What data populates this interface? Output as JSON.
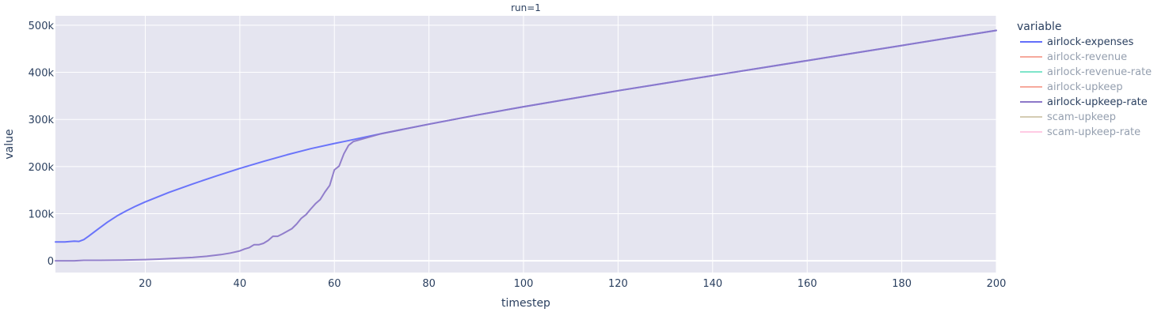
{
  "chart_data": {
    "type": "line",
    "facet_title": "run=1",
    "xlabel": "timestep",
    "ylabel": "value",
    "xlim": [
      1,
      200
    ],
    "ylim": [
      -25000,
      520000
    ],
    "x_ticks": [
      20,
      40,
      60,
      80,
      100,
      120,
      140,
      160,
      180,
      200
    ],
    "x_tick_labels": [
      "20",
      "40",
      "60",
      "80",
      "100",
      "120",
      "140",
      "160",
      "180",
      "200"
    ],
    "y_ticks": [
      0,
      100000,
      200000,
      300000,
      400000,
      500000
    ],
    "y_tick_labels": [
      "0",
      "100k",
      "200k",
      "300k",
      "400k",
      "500k"
    ],
    "grid": true,
    "background_color": "#e5e5f0",
    "legend": {
      "title": "variable",
      "position": "right"
    },
    "series": [
      {
        "name": "airlock-expenses",
        "color": "#636efa",
        "visible": true,
        "points": [
          [
            1,
            40000
          ],
          [
            3,
            40000
          ],
          [
            5,
            41500
          ],
          [
            6,
            41000
          ],
          [
            7,
            45000
          ],
          [
            8,
            52000
          ],
          [
            10,
            67000
          ],
          [
            12,
            82000
          ],
          [
            14,
            95000
          ],
          [
            16,
            106000
          ],
          [
            18,
            116000
          ],
          [
            20,
            125000
          ],
          [
            25,
            145000
          ],
          [
            30,
            163000
          ],
          [
            35,
            180000
          ],
          [
            40,
            196000
          ],
          [
            45,
            211000
          ],
          [
            50,
            225000
          ],
          [
            55,
            238000
          ],
          [
            60,
            249000
          ],
          [
            62,
            253000
          ],
          [
            70,
            270000
          ],
          [
            80,
            290000
          ],
          [
            90,
            309000
          ],
          [
            100,
            327000
          ],
          [
            110,
            344000
          ],
          [
            120,
            361000
          ],
          [
            130,
            377000
          ],
          [
            140,
            393000
          ],
          [
            150,
            409000
          ],
          [
            160,
            425000
          ],
          [
            170,
            441000
          ],
          [
            180,
            457000
          ],
          [
            190,
            473000
          ],
          [
            200,
            489000
          ]
        ]
      },
      {
        "name": "airlock-revenue",
        "color": "#ef553b",
        "visible": false,
        "points": []
      },
      {
        "name": "airlock-revenue-rate",
        "color": "#00cc96",
        "visible": false,
        "points": []
      },
      {
        "name": "airlock-upkeep",
        "color": "#ef553b",
        "visible": false,
        "points": []
      },
      {
        "name": "airlock-upkeep-rate",
        "color": "#8c78c8",
        "visible": true,
        "points": [
          [
            1,
            0
          ],
          [
            5,
            0
          ],
          [
            7,
            1000
          ],
          [
            10,
            1000
          ],
          [
            15,
            1500
          ],
          [
            20,
            2500
          ],
          [
            23,
            3500
          ],
          [
            25,
            4500
          ],
          [
            30,
            7000
          ],
          [
            33,
            9500
          ],
          [
            36,
            13000
          ],
          [
            38,
            16500
          ],
          [
            40,
            21000
          ],
          [
            41,
            25000
          ],
          [
            42,
            28000
          ],
          [
            43,
            34000
          ],
          [
            44,
            34000
          ],
          [
            45,
            37000
          ],
          [
            46,
            43000
          ],
          [
            47,
            52000
          ],
          [
            48,
            52000
          ],
          [
            49,
            57000
          ],
          [
            51,
            68000
          ],
          [
            52,
            78000
          ],
          [
            53,
            90000
          ],
          [
            54,
            98000
          ],
          [
            55,
            110000
          ],
          [
            56,
            121000
          ],
          [
            57,
            130000
          ],
          [
            58,
            146000
          ],
          [
            59,
            160000
          ],
          [
            60,
            193000
          ],
          [
            61,
            201000
          ],
          [
            62,
            227000
          ],
          [
            63,
            245000
          ],
          [
            64,
            253000
          ],
          [
            70,
            270000
          ],
          [
            80,
            290000
          ],
          [
            90,
            309000
          ],
          [
            100,
            327000
          ],
          [
            110,
            344000
          ],
          [
            120,
            361000
          ],
          [
            130,
            377000
          ],
          [
            140,
            393000
          ],
          [
            150,
            409000
          ],
          [
            160,
            425000
          ],
          [
            170,
            441000
          ],
          [
            180,
            457000
          ],
          [
            190,
            473000
          ],
          [
            200,
            489000
          ]
        ]
      },
      {
        "name": "scam-upkeep",
        "color": "#ab9b6a",
        "visible": false,
        "points": []
      },
      {
        "name": "scam-upkeep-rate",
        "color": "#ff97c8",
        "visible": false,
        "points": []
      }
    ]
  }
}
